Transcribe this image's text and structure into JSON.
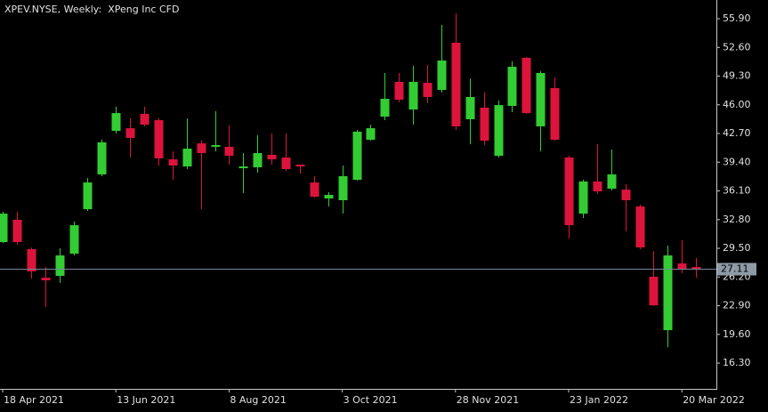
{
  "chart_data": {
    "type": "candlestick",
    "title": "XPEV.NYSE, Weekly:  XPeng Inc CFD",
    "categories": [
      "18 Apr 2021",
      null,
      null,
      null,
      null,
      null,
      null,
      null,
      "13 Jun 2021",
      null,
      null,
      null,
      null,
      null,
      null,
      null,
      "8 Aug 2021",
      null,
      null,
      null,
      null,
      null,
      null,
      null,
      "3 Oct 2021",
      null,
      null,
      null,
      null,
      null,
      null,
      null,
      "28 Nov 2021",
      null,
      null,
      null,
      null,
      null,
      null,
      null,
      "23 Jan 2022",
      null,
      null,
      null,
      null,
      null,
      null,
      null,
      "20 Mar 2022",
      null
    ],
    "open": [
      30.22,
      32.78,
      29.4,
      26.12,
      26.33,
      28.89,
      34.0,
      38.0,
      43.0,
      43.31,
      44.95,
      44.24,
      39.73,
      38.91,
      41.57,
      41.17,
      41.17,
      38.71,
      38.81,
      40.25,
      39.94,
      39.12,
      37.07,
      35.23,
      35.03,
      37.38,
      41.98,
      44.64,
      48.64,
      45.46,
      48.53,
      47.71,
      53.14,
      44.34,
      45.67,
      40.14,
      45.87,
      51.4,
      43.52,
      47.92,
      39.94,
      33.49,
      37.18,
      36.36,
      36.25,
      34.31,
      26.23,
      20.09,
      27.76,
      27.35
    ],
    "high": [
      33.7,
      33.7,
      29.6,
      27.35,
      29.5,
      32.57,
      37.58,
      42.0,
      45.77,
      44.44,
      45.77,
      44.44,
      40.65,
      44.44,
      41.88,
      45.26,
      43.62,
      40.45,
      42.5,
      42.7,
      42.7,
      39.12,
      37.79,
      35.95,
      39.02,
      43.11,
      43.72,
      49.66,
      49.66,
      50.48,
      50.58,
      55.18,
      56.51,
      49.04,
      47.41,
      46.49,
      50.99,
      51.5,
      49.86,
      49.15,
      40.14,
      37.38,
      41.47,
      40.86,
      36.87,
      34.51,
      29.19,
      29.81,
      30.42,
      28.38
    ],
    "low": [
      30.1,
      29.91,
      26.02,
      22.75,
      25.51,
      28.68,
      33.8,
      37.79,
      42.7,
      39.94,
      43.52,
      39.02,
      37.38,
      38.61,
      34.0,
      40.65,
      39.12,
      35.85,
      38.2,
      39.12,
      38.4,
      38.1,
      35.34,
      34.31,
      33.49,
      37.28,
      41.88,
      44.24,
      46.28,
      43.72,
      46.18,
      47.41,
      43.11,
      41.47,
      41.37,
      39.94,
      45.16,
      44.95,
      40.65,
      41.88,
      30.63,
      32.98,
      35.74,
      36.15,
      31.45,
      29.4,
      22.85,
      18.14,
      26.64,
      26.12
    ],
    "close": [
      33.49,
      30.22,
      26.84,
      25.82,
      28.68,
      32.16,
      37.07,
      41.68,
      45.05,
      42.19,
      43.72,
      39.84,
      39.02,
      40.96,
      40.45,
      41.37,
      40.14,
      38.91,
      40.45,
      39.73,
      38.61,
      38.91,
      35.44,
      35.64,
      37.79,
      42.91,
      43.31,
      46.69,
      46.59,
      48.64,
      46.9,
      51.09,
      43.52,
      46.9,
      41.88,
      45.97,
      50.37,
      45.05,
      49.66,
      41.98,
      32.16,
      37.18,
      36.05,
      38.0,
      35.03,
      29.6,
      22.95,
      28.68,
      27.05,
      27.11
    ],
    "up_color": "#33cc33",
    "down_color": "#dc143c",
    "last_price": 27.11,
    "ylim": [
      13.34,
      58.05
    ],
    "yticks": [
      {
        "value": 55.9,
        "label": "55.90"
      },
      {
        "value": 52.6,
        "label": "52.60"
      },
      {
        "value": 49.3,
        "label": "49.30"
      },
      {
        "value": 46.0,
        "label": "46.00"
      },
      {
        "value": 42.7,
        "label": "42.70"
      },
      {
        "value": 39.4,
        "label": "39.40"
      },
      {
        "value": 36.1,
        "label": "36.10"
      },
      {
        "value": 32.8,
        "label": "32.80"
      },
      {
        "value": 29.5,
        "label": "29.50"
      },
      {
        "value": 26.2,
        "label": "26.20"
      },
      {
        "value": 22.9,
        "label": "22.90"
      },
      {
        "value": 19.6,
        "label": "19.60"
      },
      {
        "value": 16.3,
        "label": "16.30"
      }
    ],
    "grid": false
  }
}
